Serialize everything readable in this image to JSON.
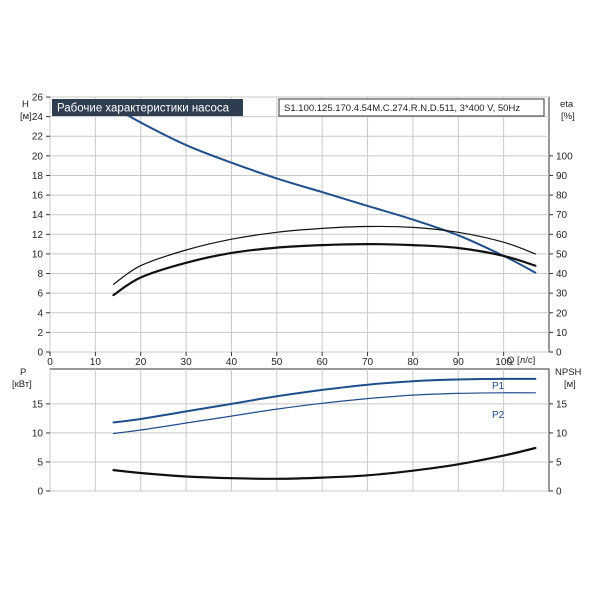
{
  "header": {
    "title": "Рабочие характеристики насоса",
    "model": "S1.100.125.170.4.54M.C.274.R.N.D.511, 3*400 V, 50Hz"
  },
  "colors": {
    "title_bg": "#2e3e50",
    "pump_blue": "#1f4e8c",
    "black": "#111111",
    "grid": "#c8c8c8"
  },
  "chart_data": [
    {
      "type": "line",
      "panel": "head-and-efficiency",
      "x_axis": {
        "label": "Q [л/с]",
        "ticks": [
          0,
          10,
          20,
          30,
          40,
          50,
          60,
          70,
          80,
          90,
          100
        ],
        "range": [
          0,
          110
        ]
      },
      "y_left": {
        "label_top": "H",
        "label_unit": "[м]",
        "ticks": [
          0,
          2,
          4,
          6,
          8,
          10,
          12,
          14,
          16,
          18,
          20,
          22,
          24,
          26
        ],
        "range": [
          0,
          26
        ]
      },
      "y_right": {
        "label_top": "eta",
        "label_unit": "[%]",
        "ticks": [
          0,
          10,
          20,
          30,
          40,
          50,
          60,
          70,
          80,
          90,
          100
        ],
        "range": [
          0,
          130
        ]
      },
      "grid": true,
      "series": [
        {
          "axis": "left",
          "color": "#1f4e8c",
          "width": 2,
          "points": [
            [
              14,
              25
            ],
            [
              20,
              23.4
            ],
            [
              30,
              21.1
            ],
            [
              40,
              19.3
            ],
            [
              50,
              17.7
            ],
            [
              60,
              16.3
            ],
            [
              70,
              14.9
            ],
            [
              80,
              13.5
            ],
            [
              90,
              11.9
            ],
            [
              100,
              9.8
            ],
            [
              107,
              8.1
            ]
          ]
        },
        {
          "axis": "right",
          "color": "#111111",
          "width": 1.2,
          "points": [
            [
              14,
              34.5
            ],
            [
              20,
              44
            ],
            [
              30,
              52
            ],
            [
              40,
              57.5
            ],
            [
              50,
              61
            ],
            [
              60,
              63
            ],
            [
              70,
              64
            ],
            [
              80,
              63.5
            ],
            [
              90,
              61
            ],
            [
              100,
              56
            ],
            [
              107,
              50
            ]
          ]
        },
        {
          "axis": "right",
          "color": "#111111",
          "width": 2.2,
          "points": [
            [
              14,
              29
            ],
            [
              20,
              38
            ],
            [
              30,
              45.5
            ],
            [
              40,
              50.5
            ],
            [
              50,
              53.2
            ],
            [
              60,
              54.5
            ],
            [
              70,
              55
            ],
            [
              80,
              54.5
            ],
            [
              90,
              53
            ],
            [
              100,
              49
            ],
            [
              107,
              44
            ]
          ]
        }
      ]
    },
    {
      "type": "line",
      "panel": "power-and-npsh",
      "y_left": {
        "label_top": "P",
        "label_unit": "[кВт]",
        "ticks": [
          0,
          5,
          10,
          15
        ],
        "range": [
          0,
          21
        ]
      },
      "y_right": {
        "label_top": "NPSH",
        "label_unit": "[м]",
        "ticks": [
          0,
          5,
          10,
          15
        ],
        "range": [
          0,
          21
        ]
      },
      "grid": true,
      "series": [
        {
          "name": "P1",
          "axis": "left",
          "color": "#1f4e8c",
          "width": 2,
          "points": [
            [
              14,
              11.8
            ],
            [
              20,
              12.4
            ],
            [
              30,
              13.7
            ],
            [
              40,
              15.0
            ],
            [
              50,
              16.3
            ],
            [
              60,
              17.4
            ],
            [
              70,
              18.3
            ],
            [
              80,
              18.9
            ],
            [
              90,
              19.2
            ],
            [
              100,
              19.3
            ],
            [
              107,
              19.3
            ]
          ]
        },
        {
          "name": "P2",
          "axis": "left",
          "color": "#1f4e8c",
          "width": 1.2,
          "points": [
            [
              14,
              9.9
            ],
            [
              20,
              10.5
            ],
            [
              30,
              11.7
            ],
            [
              40,
              12.9
            ],
            [
              50,
              14.1
            ],
            [
              60,
              15.1
            ],
            [
              70,
              15.9
            ],
            [
              80,
              16.5
            ],
            [
              90,
              16.8
            ],
            [
              100,
              16.9
            ],
            [
              107,
              16.9
            ]
          ]
        },
        {
          "axis": "right",
          "color": "#111111",
          "width": 2.2,
          "points": [
            [
              14,
              3.6
            ],
            [
              20,
              3.1
            ],
            [
              30,
              2.5
            ],
            [
              40,
              2.2
            ],
            [
              50,
              2.1
            ],
            [
              60,
              2.3
            ],
            [
              70,
              2.7
            ],
            [
              80,
              3.5
            ],
            [
              90,
              4.6
            ],
            [
              100,
              6.1
            ],
            [
              107,
              7.4
            ]
          ]
        }
      ]
    }
  ]
}
